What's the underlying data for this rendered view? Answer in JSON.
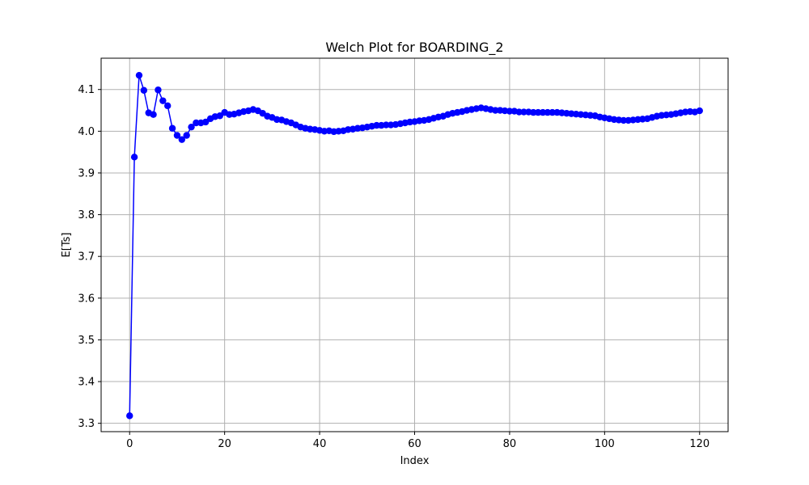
{
  "chart_data": {
    "type": "line",
    "title": "Welch Plot for BOARDING_2",
    "xlabel": "Index",
    "ylabel": "E[Ts]",
    "xlim": [
      -6,
      126
    ],
    "ylim": [
      3.28,
      4.175
    ],
    "xticks": [
      0,
      20,
      40,
      60,
      80,
      100,
      120
    ],
    "xtick_labels": [
      "0",
      "20",
      "40",
      "60",
      "80",
      "100",
      "120"
    ],
    "yticks": [
      3.3,
      3.4,
      3.5,
      3.6,
      3.7,
      3.8,
      3.9,
      4.0,
      4.1
    ],
    "ytick_labels": [
      "3.3",
      "3.4",
      "3.5",
      "3.6",
      "3.7",
      "3.8",
      "3.9",
      "4.0",
      "4.1"
    ],
    "grid": true,
    "series": [
      {
        "color": "#0000ff",
        "marker": "circle",
        "values": [
          3.318,
          3.938,
          4.134,
          4.098,
          4.044,
          4.04,
          4.099,
          4.073,
          4.061,
          4.007,
          3.99,
          3.98,
          3.99,
          4.01,
          4.02,
          4.02,
          4.022,
          4.03,
          4.035,
          4.037,
          4.045,
          4.04,
          4.041,
          4.044,
          4.047,
          4.049,
          4.052,
          4.049,
          4.043,
          4.036,
          4.033,
          4.028,
          4.027,
          4.023,
          4.02,
          4.015,
          4.01,
          4.007,
          4.005,
          4.004,
          4.002,
          4.0,
          4.001,
          3.999,
          4.0,
          4.001,
          4.004,
          4.005,
          4.007,
          4.008,
          4.01,
          4.012,
          4.014,
          4.014,
          4.015,
          4.015,
          4.016,
          4.018,
          4.02,
          4.022,
          4.023,
          4.025,
          4.026,
          4.028,
          4.031,
          4.034,
          4.036,
          4.04,
          4.043,
          4.045,
          4.047,
          4.05,
          4.052,
          4.054,
          4.056,
          4.054,
          4.052,
          4.05,
          4.05,
          4.049,
          4.048,
          4.048,
          4.046,
          4.046,
          4.046,
          4.045,
          4.045,
          4.045,
          4.045,
          4.045,
          4.045,
          4.044,
          4.043,
          4.042,
          4.041,
          4.04,
          4.039,
          4.038,
          4.037,
          4.034,
          4.032,
          4.03,
          4.028,
          4.027,
          4.026,
          4.026,
          4.027,
          4.028,
          4.029,
          4.03,
          4.033,
          4.036,
          4.038,
          4.039,
          4.04,
          4.042,
          4.044,
          4.046,
          4.047,
          4.046,
          4.049
        ]
      }
    ]
  }
}
